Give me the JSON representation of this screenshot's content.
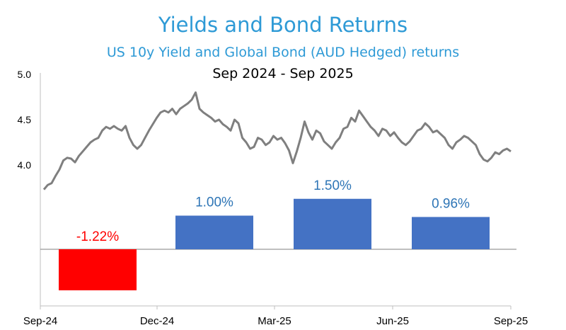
{
  "chart_data": {
    "type": "bar+line",
    "title": "Yields and Bond Returns",
    "subtitle": "US 10y Yield and Global Bond (AUD Hedged) returns",
    "period": "Sep 2024 - Sep 2025",
    "x_tick_labels": [
      "Sep-24",
      "Dec-24",
      "Mar-25",
      "Jun-25",
      "Sep-25"
    ],
    "y_tick_labels": [
      "5.0",
      "4.5",
      "4.0"
    ],
    "ylim": [
      3.0,
      5.0
    ],
    "grid": false,
    "legend": "none",
    "bars": {
      "series_color_pos": "#4472C4",
      "series_color_neg": "#FF0000",
      "labels": [
        "-1.22%",
        "1.00%",
        "1.50%",
        "0.96%"
      ],
      "values": [
        -1.22,
        1.0,
        1.5,
        0.96
      ],
      "label_colors": [
        "#FF0000",
        "#2E75B6",
        "#2E75B6",
        "#2E75B6"
      ]
    },
    "line": {
      "color": "#7F7F7F",
      "x": [
        0,
        1,
        2,
        3,
        4,
        5,
        6,
        7,
        8,
        9,
        10,
        11,
        12,
        13,
        14,
        15,
        16,
        17,
        18,
        19,
        20,
        21,
        22,
        23,
        24,
        25,
        26,
        27,
        28,
        29,
        30,
        31,
        32,
        33,
        34,
        35,
        36,
        37,
        38,
        39,
        40,
        41,
        42,
        43,
        44,
        45,
        46,
        47,
        48,
        49,
        50,
        51,
        52,
        53,
        54,
        55,
        56,
        57,
        58,
        59,
        60,
        61,
        62,
        63,
        64,
        65,
        66,
        67,
        68,
        69,
        70,
        71,
        72,
        73,
        74,
        75,
        76,
        77,
        78,
        79,
        80,
        81,
        82,
        83,
        84,
        85,
        86,
        87,
        88,
        89,
        90,
        91,
        92,
        93,
        94,
        95,
        96,
        97,
        98,
        99,
        100,
        101,
        102,
        103,
        104,
        105,
        106,
        107,
        108,
        109,
        110,
        111,
        112,
        113,
        114,
        115,
        116,
        117,
        118,
        119,
        120
      ],
      "y": [
        3.73,
        3.78,
        3.8,
        3.88,
        3.95,
        4.05,
        4.08,
        4.07,
        4.03,
        4.1,
        4.15,
        4.2,
        4.25,
        4.28,
        4.3,
        4.38,
        4.42,
        4.4,
        4.43,
        4.4,
        4.38,
        4.43,
        4.3,
        4.22,
        4.18,
        4.22,
        4.3,
        4.38,
        4.45,
        4.52,
        4.58,
        4.6,
        4.58,
        4.62,
        4.56,
        4.62,
        4.65,
        4.68,
        4.72,
        4.8,
        4.62,
        4.58,
        4.55,
        4.52,
        4.48,
        4.5,
        4.45,
        4.42,
        4.38,
        4.5,
        4.46,
        4.3,
        4.25,
        4.18,
        4.2,
        4.3,
        4.28,
        4.22,
        4.25,
        4.32,
        4.28,
        4.3,
        4.24,
        4.16,
        4.02,
        4.15,
        4.3,
        4.48,
        4.36,
        4.28,
        4.38,
        4.35,
        4.26,
        4.22,
        4.18,
        4.25,
        4.3,
        4.4,
        4.42,
        4.52,
        4.48,
        4.6,
        4.54,
        4.48,
        4.42,
        4.38,
        4.32,
        4.4,
        4.38,
        4.32,
        4.36,
        4.3,
        4.25,
        4.22,
        4.26,
        4.32,
        4.38,
        4.4,
        4.46,
        4.42,
        4.36,
        4.38,
        4.34,
        4.3,
        4.22,
        4.18,
        4.25,
        4.28,
        4.32,
        4.3,
        4.26,
        4.22,
        4.12,
        4.06,
        4.04,
        4.08,
        4.14,
        4.12,
        4.16,
        4.18,
        4.15
      ]
    }
  }
}
